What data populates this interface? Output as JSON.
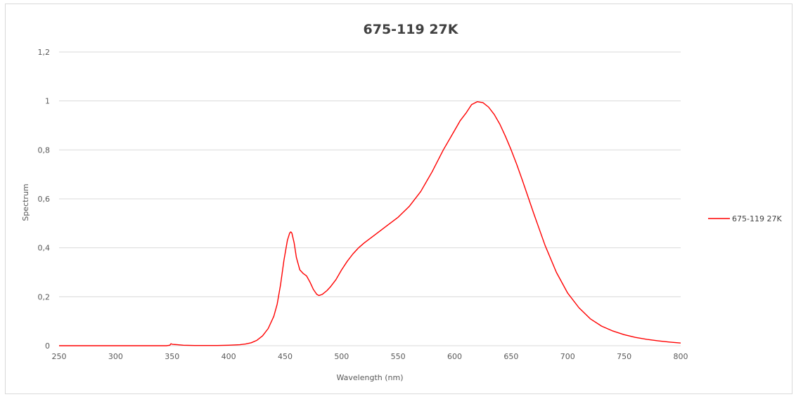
{
  "chart_data": {
    "type": "line",
    "title": "675-119 27K",
    "xlabel": "Wavelength (nm)",
    "ylabel": "Spectrum",
    "xlim": [
      250,
      800
    ],
    "ylim": [
      0,
      1.2
    ],
    "x_ticks": [
      "250",
      "300",
      "350",
      "400",
      "450",
      "500",
      "550",
      "600",
      "650",
      "700",
      "750",
      "800"
    ],
    "y_ticks": [
      "0",
      "0,2",
      "0,4",
      "0,6",
      "0,8",
      "1",
      "1,2"
    ],
    "grid": "horizontal",
    "legend_position": "right",
    "series": [
      {
        "name": "675-119 27K",
        "color": "#ff0000",
        "x": [
          250,
          300,
          345,
          348,
          349,
          350,
          352,
          355,
          360,
          370,
          380,
          390,
          400,
          410,
          415,
          420,
          425,
          430,
          435,
          440,
          443,
          446,
          449,
          452,
          454,
          455,
          456,
          458,
          460,
          463,
          466,
          469,
          472,
          475,
          478,
          480,
          483,
          487,
          490,
          495,
          500,
          505,
          510,
          515,
          520,
          530,
          540,
          550,
          560,
          570,
          580,
          590,
          600,
          605,
          610,
          615,
          620,
          625,
          630,
          635,
          640,
          645,
          650,
          655,
          660,
          670,
          680,
          690,
          700,
          710,
          720,
          730,
          740,
          750,
          760,
          770,
          780,
          790,
          800
        ],
        "y": [
          0,
          0,
          0,
          0.002,
          0.008,
          0.006,
          0.005,
          0.004,
          0.002,
          0.001,
          0.001,
          0.001,
          0.002,
          0.004,
          0.007,
          0.012,
          0.022,
          0.04,
          0.07,
          0.12,
          0.17,
          0.25,
          0.35,
          0.43,
          0.46,
          0.465,
          0.46,
          0.42,
          0.36,
          0.31,
          0.295,
          0.285,
          0.26,
          0.23,
          0.21,
          0.205,
          0.21,
          0.225,
          0.24,
          0.27,
          0.31,
          0.345,
          0.375,
          0.4,
          0.42,
          0.455,
          0.49,
          0.525,
          0.57,
          0.63,
          0.71,
          0.8,
          0.88,
          0.92,
          0.95,
          0.985,
          0.997,
          0.993,
          0.975,
          0.945,
          0.905,
          0.855,
          0.8,
          0.74,
          0.675,
          0.54,
          0.41,
          0.3,
          0.215,
          0.155,
          0.11,
          0.08,
          0.06,
          0.045,
          0.034,
          0.026,
          0.02,
          0.015,
          0.011
        ]
      }
    ]
  }
}
